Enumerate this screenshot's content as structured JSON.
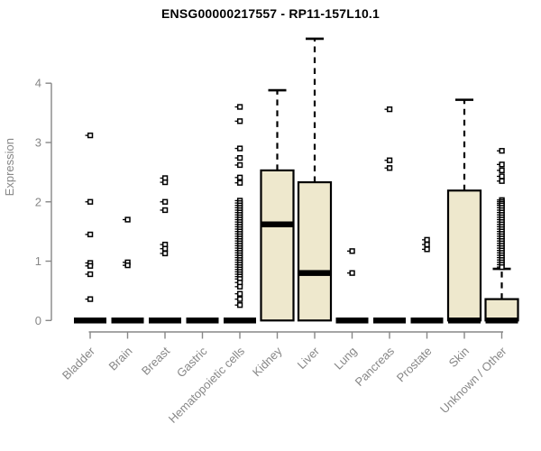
{
  "colors": {
    "background": "#FFFFFF",
    "box_fill": "#EEE8CD",
    "box_stroke": "#000000",
    "axis": "#878787",
    "title_color": "#000000"
  },
  "chart_data": {
    "type": "boxplot",
    "title": "ENSG00000217557 - RP11-157L10.1",
    "ylabel": "Expression",
    "xlabel": "",
    "ylim": [
      0,
      4.85
    ],
    "yticks": [
      0,
      1,
      2,
      3,
      4
    ],
    "grid": false,
    "legend": "none",
    "categories": [
      "Bladder",
      "Brain",
      "Breast",
      "Gastric",
      "Hematopoietic cells",
      "Kidney",
      "Liver",
      "Lung",
      "Pancreas",
      "Prostate",
      "Skin",
      "Unknown / Other"
    ],
    "boxes": [
      {
        "category": "Bladder",
        "q1": 0,
        "median": 0,
        "q3": 0,
        "whisker_low": 0,
        "whisker_high": 0,
        "outliers": [
          3.12,
          2.0,
          1.45,
          0.97,
          0.92,
          0.78,
          0.36
        ]
      },
      {
        "category": "Brain",
        "q1": 0,
        "median": 0,
        "q3": 0,
        "whisker_low": 0,
        "whisker_high": 0,
        "outliers": [
          1.7,
          0.98,
          0.93
        ]
      },
      {
        "category": "Breast",
        "q1": 0,
        "median": 0,
        "q3": 0,
        "whisker_low": 0,
        "whisker_high": 0,
        "outliers": [
          2.4,
          2.33,
          2.0,
          1.86,
          1.28,
          1.21,
          1.13
        ]
      },
      {
        "category": "Gastric",
        "q1": 0,
        "median": 0,
        "q3": 0,
        "whisker_low": 0,
        "whisker_high": 0,
        "outliers": []
      },
      {
        "category": "Hematopoietic cells",
        "q1": 0,
        "median": 0,
        "q3": 0,
        "whisker_low": 0,
        "whisker_high": 0,
        "outliers": [
          3.6,
          3.36,
          2.9,
          2.74,
          2.62,
          2.41,
          2.32,
          2.02,
          1.98,
          1.94,
          1.9,
          1.86,
          1.82,
          1.78,
          1.74,
          1.7,
          1.66,
          1.62,
          1.58,
          1.54,
          1.5,
          1.46,
          1.42,
          1.38,
          1.34,
          1.3,
          1.26,
          1.22,
          1.18,
          1.14,
          1.1,
          1.06,
          1.02,
          0.98,
          0.94,
          0.9,
          0.86,
          0.82,
          0.78,
          0.74,
          0.7,
          0.64,
          0.57,
          0.45,
          0.36,
          0.26
        ]
      },
      {
        "category": "Kidney",
        "q1": 0,
        "median": 1.62,
        "q3": 2.53,
        "whisker_low": 0,
        "whisker_high": 3.88,
        "outliers": []
      },
      {
        "category": "Liver",
        "q1": 0,
        "median": 0.8,
        "q3": 2.33,
        "whisker_low": 0,
        "whisker_high": 4.75,
        "outliers": []
      },
      {
        "category": "Lung",
        "q1": 0,
        "median": 0,
        "q3": 0,
        "whisker_low": 0,
        "whisker_high": 0,
        "outliers": [
          1.17,
          0.8
        ]
      },
      {
        "category": "Pancreas",
        "q1": 0,
        "median": 0,
        "q3": 0,
        "whisker_low": 0,
        "whisker_high": 0,
        "outliers": [
          3.56,
          2.7,
          2.57
        ]
      },
      {
        "category": "Prostate",
        "q1": 0,
        "median": 0,
        "q3": 0,
        "whisker_low": 0,
        "whisker_high": 0,
        "outliers": [
          1.36,
          1.28,
          1.2
        ]
      },
      {
        "category": "Skin",
        "q1": 0,
        "median": 0,
        "q3": 2.19,
        "whisker_low": 0,
        "whisker_high": 3.72,
        "outliers": []
      },
      {
        "category": "Unknown / Other",
        "q1": 0,
        "median": 0,
        "q3": 0.36,
        "whisker_low": 0,
        "whisker_high": 0.87,
        "outliers": [
          2.86,
          2.63,
          2.53,
          2.43,
          2.35,
          2.03,
          2.0,
          1.97,
          1.94,
          1.9,
          1.86,
          1.82,
          1.78,
          1.74,
          1.7,
          1.66,
          1.62,
          1.58,
          1.54,
          1.5,
          1.46,
          1.42,
          1.38,
          1.34,
          1.3,
          1.26,
          1.22,
          1.18,
          1.14,
          1.1,
          1.06,
          1.02,
          0.98,
          0.94,
          0.9
        ]
      }
    ]
  }
}
